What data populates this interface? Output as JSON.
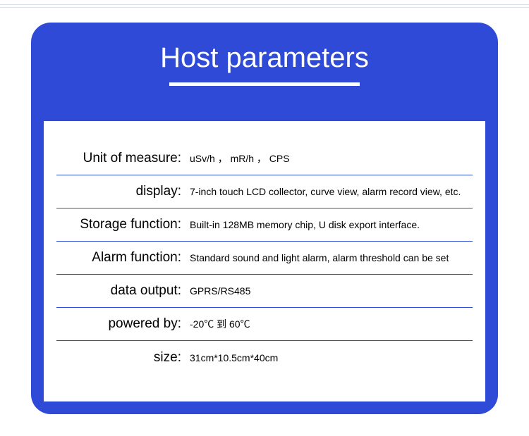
{
  "panel": {
    "title": "Host parameters",
    "bg_color": "#2e4ad7",
    "title_color": "#ffffff",
    "underline_color": "#ffffff",
    "border_radius": 28
  },
  "card": {
    "bg_color": "#ffffff",
    "row_border_color": "#2e4ad7",
    "label_fontsize": 19,
    "value_fontsize": 14
  },
  "rows": [
    {
      "label": "Unit of measure:",
      "value": "uSv/h ， mR/h ， CPS"
    },
    {
      "label": "display:",
      "value": "7-inch touch LCD collector, curve view, alarm record view, etc."
    },
    {
      "label": "Storage function:",
      "value": "Built-in 128MB memory chip, U disk export interface."
    },
    {
      "label": "Alarm function:",
      "value": "Standard sound and light alarm, alarm threshold can be set"
    },
    {
      "label": "data output:",
      "value": "GPRS/RS485"
    },
    {
      "label": "powered by:",
      "value": "-20℃ 到 60℃"
    },
    {
      "label": "size:",
      "value": "31cm*10.5cm*40cm"
    }
  ]
}
